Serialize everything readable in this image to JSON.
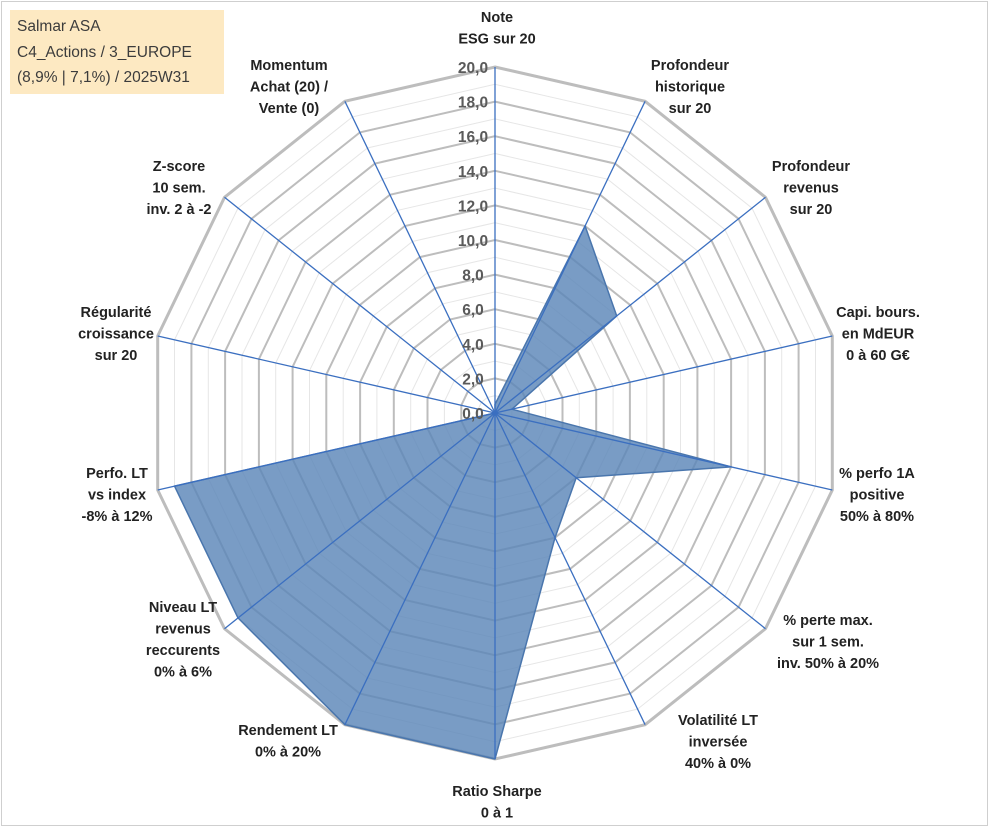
{
  "info_box": {
    "lines": [
      "Salmar ASA",
      "C4_Actions / 3_EUROPE",
      "(8,9% | 7,1%) / 2025W31"
    ]
  },
  "chart_data": {
    "type": "radar",
    "title": "",
    "rmax": 20,
    "ticks": [
      "0,0",
      "2,0",
      "4,0",
      "6,0",
      "8,0",
      "10,0",
      "12,0",
      "14,0",
      "16,0",
      "18,0",
      "20,0"
    ],
    "tick_values": [
      0,
      2,
      4,
      6,
      8,
      10,
      12,
      14,
      16,
      18,
      20
    ],
    "grid": {
      "minor_step": 1,
      "major_step": 2
    },
    "axes": [
      {
        "lines": [
          "Note",
          "ESG sur 20"
        ],
        "value": 0.5
      },
      {
        "lines": [
          "Profondeur",
          "historique",
          "sur 20"
        ],
        "value": 12.0
      },
      {
        "lines": [
          "Profondeur",
          "revenus",
          "sur 20"
        ],
        "value": 9.0
      },
      {
        "lines": [
          "Capi. bours.",
          "en MdEUR",
          "0 à 60 G€"
        ],
        "value": 1.0
      },
      {
        "lines": [
          "% perfo 1A",
          "positive",
          "50% à 80%"
        ],
        "value": 14.0
      },
      {
        "lines": [
          "% perte max.",
          "sur 1 sem.",
          "inv. 50% à 20%"
        ],
        "value": 6.0
      },
      {
        "lines": [
          "Volatilité LT",
          "inversée",
          "40% à 0%"
        ],
        "value": 8.0
      },
      {
        "lines": [
          "Ratio Sharpe",
          "0 à 1"
        ],
        "value": 20.0
      },
      {
        "lines": [
          "Rendement LT",
          "0% à 20%"
        ],
        "value": 20.0
      },
      {
        "lines": [
          "Niveau LT",
          "revenus",
          "reccurents",
          "0% à 6%"
        ],
        "value": 19.0
      },
      {
        "lines": [
          "Perfo. LT",
          "vs index",
          "-8% à 12%"
        ],
        "value": 19.0
      },
      {
        "lines": [
          "Régularité",
          "croissance",
          "sur 20"
        ],
        "value": 0.0
      },
      {
        "lines": [
          "Z-score",
          "10 sem.",
          "inv. 2 à -2"
        ],
        "value": 0.0
      },
      {
        "lines": [
          "Momentum",
          "Achat (20) /",
          "Vente (0)"
        ],
        "value": 0.0
      }
    ],
    "colors": {
      "fill": "#5b86b8",
      "fill_opacity": 0.82,
      "stroke": "#4a76ad",
      "spoke": "#3b6fc0",
      "grid_major": "#bdbdbd",
      "grid_minor": "#e6e6e6"
    }
  }
}
